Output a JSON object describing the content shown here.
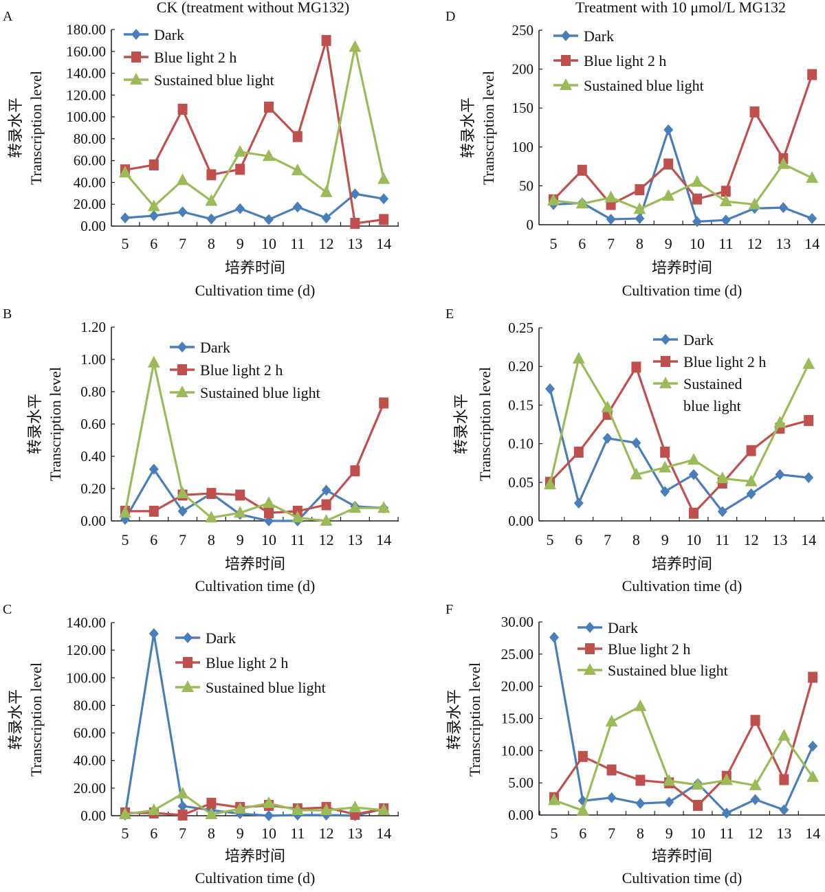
{
  "colors": {
    "Dark": "#4a7ebb",
    "Blue light 2 h": "#c0504d",
    "Sustained blue light": "#9bbb59",
    "axis": "#1a1a1a"
  },
  "common": {
    "ylabel_cn": "转录水平",
    "ylabel_en": "Transcription level",
    "xlabel_cn": "培养时间",
    "xlabel_en": "Cultivation time (d)"
  },
  "chart_data": [
    {
      "panel": "A",
      "type": "line",
      "title": "CK (treatment without MG132)",
      "x": [
        5,
        6,
        7,
        8,
        9,
        10,
        11,
        12,
        13,
        14
      ],
      "ylim": [
        0,
        180
      ],
      "yticks": [
        "0.00",
        "20.00",
        "40.00",
        "60.00",
        "80.00",
        "100.00",
        "120.00",
        "140.00",
        "160.00",
        "180.00"
      ],
      "ytick_values": [
        0,
        20,
        40,
        60,
        80,
        100,
        120,
        140,
        160,
        180
      ],
      "legend": {
        "placement": "top-left",
        "labels": [
          "Dark",
          "Blue light 2 h",
          "Sustained blue light"
        ]
      },
      "series": [
        {
          "name": "Dark",
          "marker": "diamond",
          "values": [
            7.5,
            9.5,
            13,
            6.5,
            16,
            6,
            17.5,
            7.5,
            29.5,
            25
          ]
        },
        {
          "name": "Blue light 2 h",
          "marker": "square",
          "values": [
            51.5,
            56,
            107,
            47,
            52,
            109,
            82,
            170,
            2.5,
            6
          ]
        },
        {
          "name": "Sustained blue light",
          "marker": "triangle",
          "values": [
            49,
            18,
            42,
            23,
            68,
            64,
            51,
            31,
            164,
            43
          ]
        }
      ]
    },
    {
      "panel": "B",
      "type": "line",
      "title": "",
      "x": [
        5,
        6,
        7,
        8,
        9,
        10,
        11,
        12,
        13,
        14
      ],
      "ylim": [
        0,
        1.2
      ],
      "yticks": [
        "0.00",
        "0.20",
        "0.40",
        "0.60",
        "0.80",
        "1.00",
        "1.20"
      ],
      "ytick_values": [
        0,
        0.2,
        0.4,
        0.6,
        0.8,
        1.0,
        1.2
      ],
      "legend": {
        "placement": "top-center",
        "labels": [
          "Dark",
          "Blue light 2 h",
          "Sustained blue light"
        ]
      },
      "series": [
        {
          "name": "Dark",
          "marker": "diamond",
          "values": [
            0.01,
            0.32,
            0.06,
            0.17,
            0.04,
            0.0,
            0.0,
            0.19,
            0.09,
            0.08
          ]
        },
        {
          "name": "Blue light 2 h",
          "marker": "square",
          "values": [
            0.06,
            0.06,
            0.16,
            0.17,
            0.16,
            0.05,
            0.06,
            0.1,
            0.31,
            0.73
          ]
        },
        {
          "name": "Sustained blue light",
          "marker": "triangle",
          "values": [
            0.05,
            0.98,
            0.17,
            0.02,
            0.05,
            0.11,
            0.02,
            0.0,
            0.08,
            0.08
          ]
        }
      ]
    },
    {
      "panel": "C",
      "type": "line",
      "title": "",
      "x": [
        5,
        6,
        7,
        8,
        9,
        10,
        11,
        12,
        13,
        14
      ],
      "ylim": [
        0,
        140
      ],
      "yticks": [
        "0.00",
        "20.00",
        "40.00",
        "60.00",
        "80.00",
        "100.00",
        "120.00",
        "140.00"
      ],
      "ytick_values": [
        0,
        20,
        40,
        60,
        80,
        100,
        120,
        140
      ],
      "legend": {
        "placement": "top-center",
        "labels": [
          "Dark",
          "Blue light 2 h",
          "Sustained blue light"
        ]
      },
      "series": [
        {
          "name": "Dark",
          "marker": "diamond",
          "values": [
            0.5,
            132,
            7,
            4,
            1.5,
            0,
            0.5,
            0.5,
            0,
            5
          ]
        },
        {
          "name": "Blue light 2 h",
          "marker": "square",
          "values": [
            2,
            2,
            0.5,
            9,
            6,
            7.5,
            5,
            6,
            1,
            5
          ]
        },
        {
          "name": "Sustained blue light",
          "marker": "triangle",
          "values": [
            1,
            4,
            16,
            1,
            5,
            9,
            4,
            4,
            6,
            4
          ]
        }
      ]
    },
    {
      "panel": "D",
      "type": "line",
      "title": "Treatment with 10 μmol/L MG132",
      "x": [
        5,
        6,
        7,
        8,
        9,
        10,
        11,
        12,
        13,
        14
      ],
      "ylim": [
        0,
        250
      ],
      "yticks": [
        "0",
        "50",
        "100",
        "150",
        "200",
        "250"
      ],
      "ytick_values": [
        0,
        50,
        100,
        150,
        200,
        250
      ],
      "legend": {
        "placement": "top-left",
        "labels": [
          "Dark",
          "Blue light 2 h",
          "Sustained blue light"
        ]
      },
      "series": [
        {
          "name": "Dark",
          "marker": "diamond",
          "values": [
            26,
            28,
            7,
            8,
            122,
            4,
            6,
            21,
            22,
            8
          ]
        },
        {
          "name": "Blue light 2 h",
          "marker": "square",
          "values": [
            32,
            70,
            26,
            45,
            78,
            33,
            43,
            145,
            85,
            193
          ]
        },
        {
          "name": "Sustained blue light",
          "marker": "triangle",
          "values": [
            31,
            27,
            35,
            20,
            37,
            55,
            30,
            26,
            78,
            60
          ]
        }
      ]
    },
    {
      "panel": "E",
      "type": "line",
      "title": "",
      "x": [
        5,
        6,
        7,
        8,
        9,
        10,
        11,
        12,
        13,
        14
      ],
      "ylim": [
        0,
        0.25
      ],
      "yticks": [
        "0.00",
        "0.05",
        "0.10",
        "0.15",
        "0.20",
        "0.25"
      ],
      "ytick_values": [
        0,
        0.05,
        0.1,
        0.15,
        0.2,
        0.25
      ],
      "legend": {
        "placement": "top-right",
        "labels": [
          "Dark",
          "Blue light 2 h",
          "Sustained",
          "blue light"
        ]
      },
      "series": [
        {
          "name": "Dark",
          "marker": "diamond",
          "values": [
            0.171,
            0.023,
            0.107,
            0.101,
            0.038,
            0.06,
            0.012,
            0.035,
            0.06,
            0.056
          ]
        },
        {
          "name": "Blue light 2 h",
          "marker": "square",
          "values": [
            0.05,
            0.089,
            0.138,
            0.199,
            0.089,
            0.01,
            0.049,
            0.091,
            0.12,
            0.13
          ]
        },
        {
          "name": "Sustained blue light",
          "marker": "triangle",
          "values": [
            0.047,
            0.21,
            0.147,
            0.06,
            0.069,
            0.079,
            0.055,
            0.051,
            0.127,
            0.203
          ]
        }
      ]
    },
    {
      "panel": "F",
      "type": "line",
      "title": "",
      "x": [
        5,
        6,
        7,
        8,
        9,
        10,
        11,
        12,
        13,
        14
      ],
      "ylim": [
        0,
        30
      ],
      "yticks": [
        "0.00",
        "5.00",
        "10.00",
        "15.00",
        "20.00",
        "25.00",
        "30.00"
      ],
      "ytick_values": [
        0,
        5,
        10,
        15,
        20,
        25,
        30
      ],
      "legend": {
        "placement": "top-left",
        "labels": [
          "Dark",
          "Blue light 2 h",
          "Sustained blue light"
        ]
      },
      "series": [
        {
          "name": "Dark",
          "marker": "diamond",
          "values": [
            27.6,
            2.2,
            2.7,
            1.8,
            2.0,
            4.9,
            0.3,
            2.4,
            0.8,
            10.7
          ]
        },
        {
          "name": "Blue light 2 h",
          "marker": "square",
          "values": [
            2.7,
            9.1,
            7.0,
            5.4,
            5.0,
            1.5,
            6.0,
            14.7,
            5.5,
            21.4
          ]
        },
        {
          "name": "Sustained blue light",
          "marker": "triangle",
          "values": [
            2.3,
            0.7,
            14.5,
            16.9,
            5.3,
            4.7,
            5.4,
            4.6,
            12.3,
            5.9
          ]
        }
      ]
    }
  ]
}
